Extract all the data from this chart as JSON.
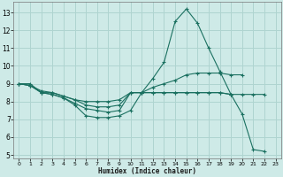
{
  "xlabel": "Humidex (Indice chaleur)",
  "xlim": [
    -0.5,
    23.5
  ],
  "ylim": [
    4.8,
    13.6
  ],
  "yticks": [
    5,
    6,
    7,
    8,
    9,
    10,
    11,
    12,
    13
  ],
  "xticks": [
    0,
    1,
    2,
    3,
    4,
    5,
    6,
    7,
    8,
    9,
    10,
    11,
    12,
    13,
    14,
    15,
    16,
    17,
    18,
    19,
    20,
    21,
    22,
    23
  ],
  "bg_color": "#ceeae7",
  "grid_color": "#afd4d0",
  "line_color": "#1a7060",
  "lines": [
    {
      "x": [
        0,
        1,
        2,
        3,
        4,
        5,
        6,
        7,
        8,
        9,
        10,
        11,
        12,
        13,
        14,
        15,
        16,
        17,
        18,
        19,
        20,
        21,
        22
      ],
      "y": [
        9.0,
        8.9,
        8.5,
        8.5,
        8.3,
        8.1,
        8.0,
        8.0,
        8.0,
        8.1,
        8.5,
        8.5,
        8.5,
        8.5,
        8.5,
        8.5,
        8.5,
        8.5,
        8.5,
        8.4,
        8.4,
        8.4,
        8.4
      ]
    },
    {
      "x": [
        0,
        1,
        2,
        3,
        4,
        5,
        6,
        7,
        8,
        9,
        10,
        11,
        12,
        13,
        14,
        15,
        16,
        17,
        18,
        19,
        20,
        21,
        22
      ],
      "y": [
        9.0,
        8.9,
        8.5,
        8.4,
        8.2,
        7.9,
        7.6,
        7.5,
        7.4,
        7.5,
        8.5,
        8.5,
        8.8,
        9.0,
        9.2,
        9.5,
        9.6,
        9.6,
        9.6,
        9.5,
        9.5,
        null,
        null
      ]
    },
    {
      "x": [
        0,
        1,
        2,
        3,
        4,
        5,
        6,
        7,
        8,
        9,
        10,
        11,
        12,
        13,
        14,
        15,
        16,
        17,
        18,
        19,
        20,
        21,
        22
      ],
      "y": [
        9.0,
        8.9,
        8.6,
        8.5,
        8.3,
        8.1,
        7.8,
        7.7,
        7.7,
        7.8,
        8.5,
        8.5,
        8.5,
        8.5,
        8.5,
        8.5,
        8.5,
        8.5,
        8.5,
        8.4,
        null,
        null,
        null
      ]
    },
    {
      "x": [
        0,
        1,
        2,
        3,
        4,
        5,
        6,
        7,
        8,
        9,
        10,
        11,
        12,
        13,
        14,
        15,
        16,
        17,
        18,
        19,
        20,
        21,
        22
      ],
      "y": [
        9.0,
        9.0,
        8.5,
        8.4,
        8.2,
        7.8,
        7.2,
        7.1,
        7.1,
        7.2,
        7.5,
        8.5,
        9.3,
        10.2,
        12.5,
        13.2,
        12.4,
        11.0,
        9.7,
        8.4,
        7.3,
        5.3,
        5.2
      ]
    }
  ]
}
